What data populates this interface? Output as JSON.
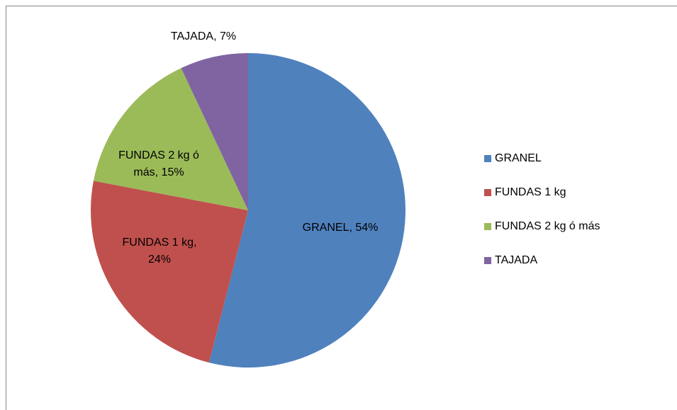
{
  "chart_data": {
    "type": "pie",
    "categories": [
      "GRANEL",
      "FUNDAS 1 kg",
      "FUNDAS 2 kg ó más",
      "TAJADA"
    ],
    "values": [
      54,
      24,
      15,
      7
    ],
    "value_labels": [
      "GRANEL, 54%",
      "FUNDAS 1 kg, 24%",
      "FUNDAS 2 kg ó más, 15%",
      "TAJADA, 7%"
    ],
    "colors": [
      "#4f81bd",
      "#c0504d",
      "#9bbb59",
      "#8064a2"
    ],
    "legend": "right"
  }
}
